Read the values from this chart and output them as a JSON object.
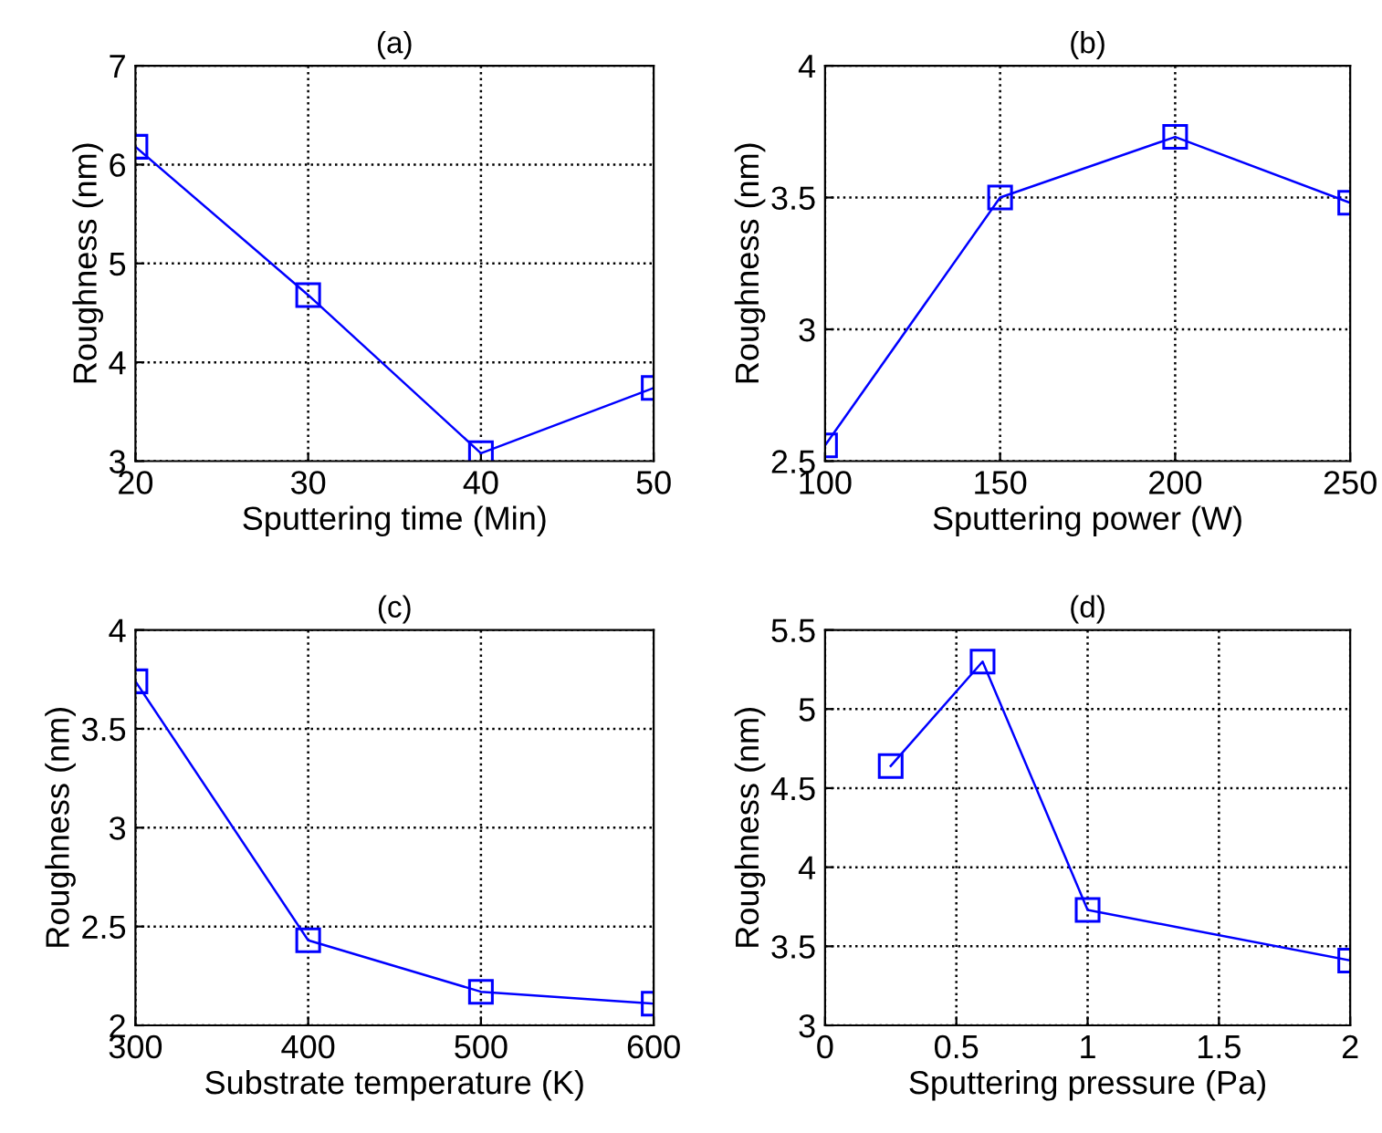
{
  "chart_data": [
    {
      "type": "line",
      "title": "(a)",
      "xlabel": "Sputtering time (Min)",
      "ylabel": "Roughness (nm)",
      "x": [
        20,
        30,
        40,
        50
      ],
      "series": [
        {
          "color": "#0000ff",
          "values": [
            6.18,
            4.68,
            3.08,
            3.74
          ]
        }
      ],
      "xlim": [
        20,
        50
      ],
      "ylim": [
        3,
        7
      ],
      "xticks": [
        20,
        30,
        40,
        50
      ],
      "yticks": [
        3,
        4,
        5,
        6,
        7
      ],
      "grid": true,
      "marker": "square",
      "line_style": "solid"
    },
    {
      "type": "line",
      "title": "(b)",
      "xlabel": "Sputtering power (W)",
      "ylabel": "Roughness (nm)",
      "x": [
        100,
        150,
        200,
        250
      ],
      "series": [
        {
          "color": "#0000ff",
          "values": [
            2.56,
            3.5,
            3.73,
            3.48
          ]
        }
      ],
      "xlim": [
        100,
        250
      ],
      "ylim": [
        2.5,
        4
      ],
      "xticks": [
        100,
        150,
        200,
        250
      ],
      "yticks": [
        2.5,
        3,
        3.5,
        4
      ],
      "grid": true,
      "marker": "square",
      "line_style": "solid"
    },
    {
      "type": "line",
      "title": "(c)",
      "xlabel": "Substrate temperature (K)",
      "ylabel": "Roughness (nm)",
      "x": [
        300,
        400,
        500,
        600
      ],
      "series": [
        {
          "color": "#0000ff",
          "values": [
            3.74,
            2.43,
            2.17,
            2.11
          ]
        }
      ],
      "xlim": [
        300,
        600
      ],
      "ylim": [
        2,
        4
      ],
      "xticks": [
        300,
        400,
        500,
        600
      ],
      "yticks": [
        2,
        2.5,
        3,
        3.5,
        4
      ],
      "grid": true,
      "marker": "square",
      "line_style": "solid"
    },
    {
      "type": "line",
      "title": "(d)",
      "xlabel": "Sputtering pressure (Pa)",
      "ylabel": "Roughness (nm)",
      "x": [
        0.25,
        0.6,
        1,
        2
      ],
      "series": [
        {
          "color": "#0000ff",
          "values": [
            4.64,
            5.3,
            3.73,
            3.41
          ]
        }
      ],
      "xlim": [
        0,
        2
      ],
      "ylim": [
        3,
        5.5
      ],
      "xticks": [
        0,
        0.5,
        1,
        1.5,
        2
      ],
      "yticks": [
        3,
        3.5,
        4,
        4.5,
        5,
        5.5
      ],
      "grid": true,
      "marker": "square",
      "line_style": "solid"
    }
  ]
}
